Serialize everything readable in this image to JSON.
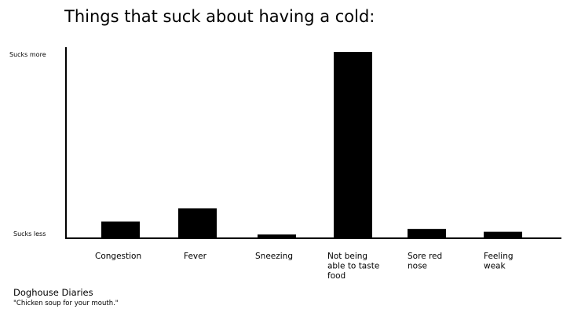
{
  "chart_data": {
    "type": "bar",
    "title": "Things that suck about having a cold:",
    "xlabel": "",
    "ylabel": "",
    "y_tick_labels": {
      "top": "Sucks more",
      "bottom": "Sucks less"
    },
    "categories": [
      [
        "Congestion"
      ],
      [
        "Fever"
      ],
      [
        "Sneezing"
      ],
      [
        "Not being",
        "able to taste",
        "food"
      ],
      [
        "Sore red",
        "nose"
      ],
      [
        "Feeling",
        "weak"
      ]
    ],
    "values": [
      9,
      16,
      2,
      100,
      5,
      3.5
    ],
    "ylim": [
      0,
      100
    ],
    "bar_color": "#000000",
    "grid": false,
    "legend": "none"
  },
  "credit": {
    "name": "Doghouse Diaries",
    "tagline": "\"Chicken soup for your mouth.\""
  }
}
